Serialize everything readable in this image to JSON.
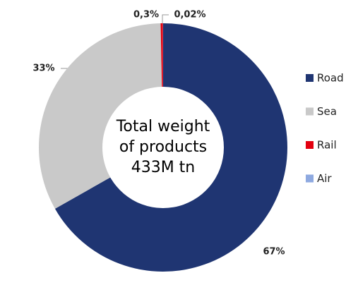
{
  "chart_data": {
    "type": "donut",
    "categories": [
      "Road",
      "Sea",
      "Rail",
      "Air"
    ],
    "values": [
      67,
      33,
      0.3,
      0.02
    ],
    "value_labels": [
      "67%",
      "33%",
      "0,3%",
      "0,02%"
    ],
    "colors": [
      "#1f3572",
      "#c9c9c9",
      "#e3000f",
      "#8ea9e0"
    ],
    "center_label": [
      "Total weight",
      "of products",
      "433M tn"
    ],
    "legend": "right"
  }
}
